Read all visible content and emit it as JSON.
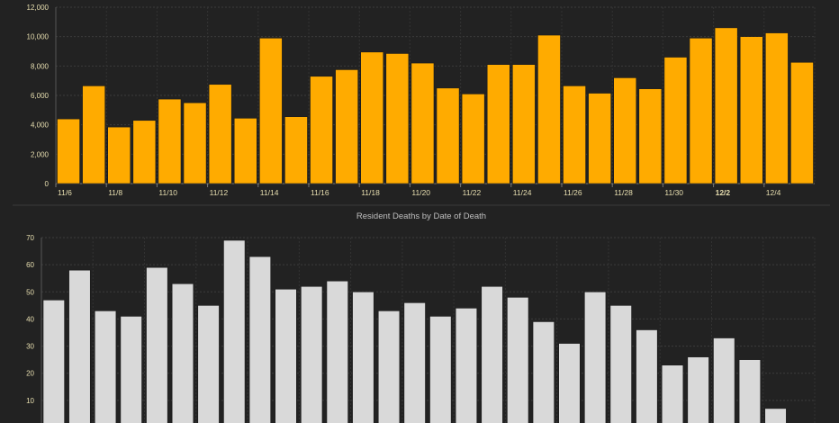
{
  "chart_data": [
    {
      "type": "bar",
      "title": "",
      "xlabel": "",
      "ylabel": "",
      "ylim": [
        0,
        12000
      ],
      "yticks": [
        "0",
        "2,000",
        "4,000",
        "6,000",
        "8,000",
        "10,000",
        "12,000"
      ],
      "categories": [
        "11/6",
        "11/7",
        "11/8",
        "11/9",
        "11/10",
        "11/11",
        "11/12",
        "11/13",
        "11/14",
        "11/15",
        "11/16",
        "11/17",
        "11/18",
        "11/19",
        "11/20",
        "11/21",
        "11/22",
        "11/23",
        "11/24",
        "11/25",
        "11/26",
        "11/27",
        "11/28",
        "11/29",
        "11/30",
        "12/1",
        "12/2",
        "12/3",
        "12/4",
        "12/5"
      ],
      "xtick_labels": [
        "11/6",
        "11/8",
        "11/10",
        "11/12",
        "11/14",
        "11/16",
        "11/18",
        "11/20",
        "11/22",
        "11/24",
        "11/26",
        "11/28",
        "11/30",
        "12/2",
        "12/4"
      ],
      "bold_tick": "12/2",
      "values": [
        4400,
        6650,
        3850,
        4300,
        5750,
        5500,
        6750,
        4450,
        9900,
        4550,
        7300,
        7750,
        8950,
        8850,
        8200,
        6500,
        6100,
        8100,
        8100,
        10100,
        6650,
        6150,
        7200,
        6450,
        8600,
        9900,
        10600,
        10000,
        10250,
        8250
      ],
      "color": "#ffab00",
      "grid": true
    },
    {
      "type": "bar",
      "title": "Resident Deaths by Date of Death",
      "xlabel": "",
      "ylabel": "",
      "ylim": [
        0,
        70
      ],
      "yticks": [
        "10",
        "20",
        "30",
        "40",
        "50",
        "60",
        "70"
      ],
      "values": [
        47,
        58,
        43,
        41,
        59,
        53,
        45,
        69,
        63,
        51,
        52,
        54,
        50,
        43,
        46,
        41,
        44,
        52,
        48,
        39,
        31,
        50,
        45,
        36,
        23,
        26,
        33,
        25,
        7
      ],
      "color": "#d9d9d9",
      "grid": true
    }
  ]
}
